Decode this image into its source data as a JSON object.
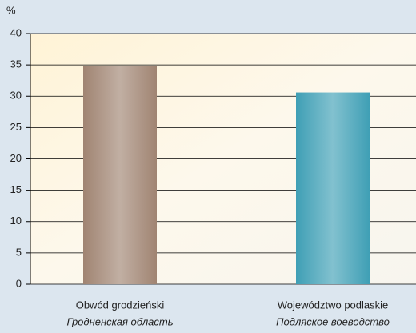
{
  "chart_data": {
    "type": "bar",
    "y_label": "%",
    "categories": [
      [
        "Obwód grodzieński",
        "Гродненская область"
      ],
      [
        "Województwo podlaskie",
        "Подляское воеводство"
      ]
    ],
    "values": [
      34.8,
      30.6
    ],
    "colors": [
      "#a08472",
      "#3f9fb5"
    ],
    "ylim": [
      0,
      40
    ],
    "yticks": [
      0,
      5,
      10,
      15,
      20,
      25,
      30,
      35,
      40
    ],
    "grid": true
  }
}
